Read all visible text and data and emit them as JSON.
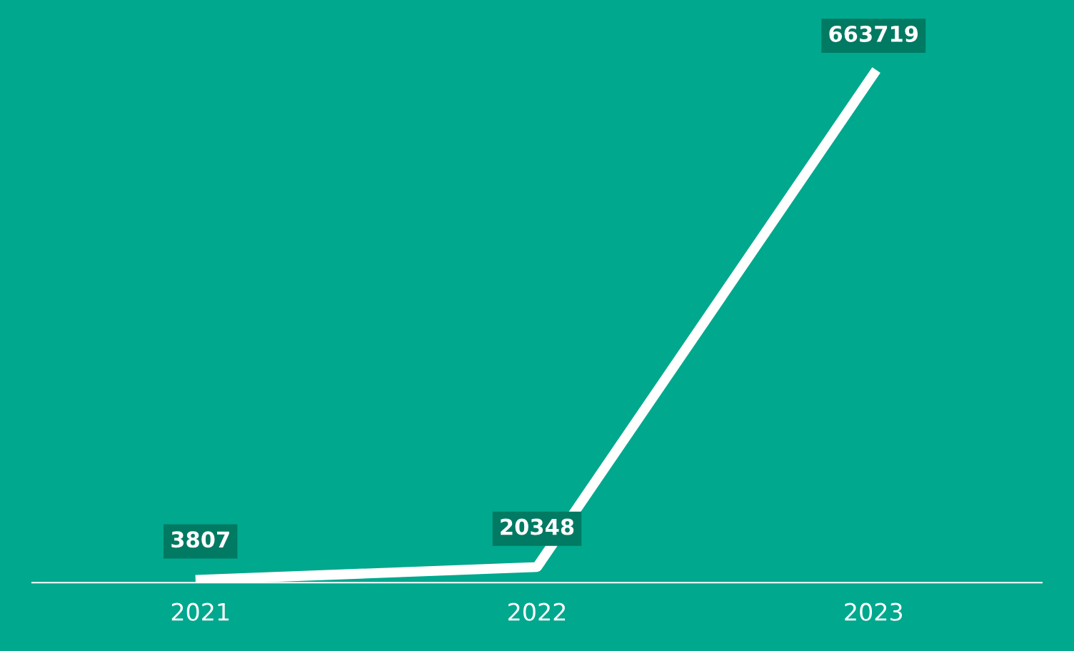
{
  "chart_data": {
    "type": "line",
    "categories": [
      "2021",
      "2022",
      "2023"
    ],
    "series": [
      {
        "color": "#ffffff",
        "values": [
          3807,
          20348,
          663719
        ]
      }
    ],
    "data_labels": true,
    "grid": false,
    "legend": false,
    "marker": "none",
    "line_style": "solid",
    "tick_labels": "x"
  }
}
